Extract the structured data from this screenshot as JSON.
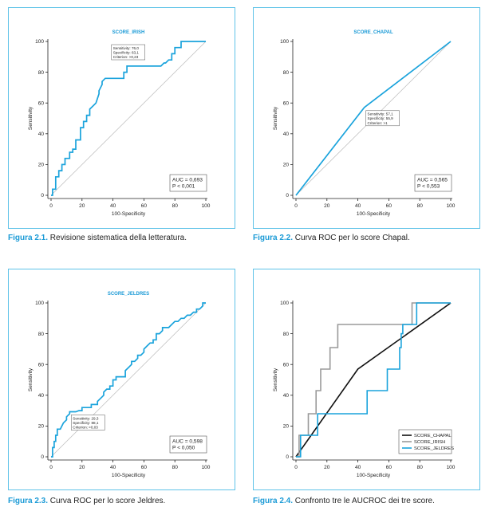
{
  "colors": {
    "accent": "#1a9ad6",
    "roc_line": "#1aa3dc",
    "diagonal": "#bbbbbb",
    "frame": "#5fc3e8"
  },
  "captions": [
    {
      "label": "Figura 2.1.",
      "text": " Revisione sistematica della letteratura."
    },
    {
      "label": "Figura 2.2.",
      "text": " Curva ROC per lo score Chapal."
    },
    {
      "label": "Figura 2.3.",
      "text": " Curva ROC per lo score Jeldres."
    },
    {
      "label": "Figura 2.4.",
      "text": " Confronto tre le AUCROC dei tre score."
    }
  ],
  "chart_data": [
    {
      "type": "line",
      "title": "SCORE_IRISH",
      "xlabel": "100-Specificity",
      "ylabel": "Sensitivity",
      "xlim": [
        0,
        100
      ],
      "ylim": [
        0,
        100
      ],
      "xticks": [
        0,
        20,
        40,
        60,
        80,
        100
      ],
      "yticks": [
        0,
        20,
        40,
        60,
        80,
        100
      ],
      "diagonal": true,
      "series": [
        {
          "color": "#1aa3dc",
          "x": [
            0,
            1,
            1,
            3,
            3,
            5,
            5,
            7,
            7,
            9,
            9,
            12,
            12,
            14,
            14,
            16,
            16,
            19,
            19,
            21,
            21,
            23,
            23,
            25,
            25,
            27,
            29,
            31,
            31,
            33,
            33,
            35,
            37,
            39,
            41,
            43,
            45,
            47,
            47,
            49,
            49,
            51,
            53,
            55,
            57,
            59,
            61,
            63,
            65,
            67,
            69,
            71,
            73,
            74,
            76,
            78,
            78,
            80,
            80,
            82,
            82,
            84,
            84,
            86,
            88,
            90,
            92,
            94,
            96,
            98,
            100
          ],
          "y": [
            0,
            0,
            4,
            4,
            12,
            12,
            16,
            16,
            20,
            20,
            24,
            24,
            28,
            28,
            30,
            30,
            36,
            36,
            44,
            44,
            48,
            48,
            52,
            52,
            56,
            58,
            60,
            66,
            68,
            72,
            74,
            76,
            76,
            76,
            76,
            76,
            76,
            76,
            80,
            80,
            84,
            84,
            84,
            84,
            84,
            84,
            84,
            84,
            84,
            84,
            84,
            84,
            86,
            86,
            88,
            88,
            92,
            92,
            96,
            96,
            96,
            96,
            100,
            100,
            100,
            100,
            100,
            100,
            100,
            100,
            100
          ]
        }
      ],
      "annotation": [
        "Sensitivity: 76,0",
        "Specificity: 63,1",
        "Criterion:    >0,23"
      ],
      "stats": [
        "AUC = 0,693",
        "P < 0,001"
      ]
    },
    {
      "type": "line",
      "title": "SCORE_CHAPAL",
      "xlabel": "100-Specificity",
      "ylabel": "Sensitivity",
      "xlim": [
        0,
        100
      ],
      "ylim": [
        0,
        100
      ],
      "xticks": [
        0,
        20,
        40,
        60,
        80,
        100
      ],
      "yticks": [
        0,
        20,
        40,
        60,
        80,
        100
      ],
      "diagonal": true,
      "series": [
        {
          "color": "#1aa3dc",
          "x": [
            0,
            44.1,
            100
          ],
          "y": [
            0,
            57.1,
            100
          ]
        }
      ],
      "annotation": [
        "Sensitivity: 57,1",
        "Specificity: 55,9",
        "Criterion:    >1"
      ],
      "stats": [
        "AUC = 0,565",
        "P < 0,553"
      ]
    },
    {
      "type": "line",
      "title": "SCORE_JELDRES",
      "xlabel": "100-Specificity",
      "ylabel": "Sensitivity",
      "xlim": [
        0,
        100
      ],
      "ylim": [
        0,
        100
      ],
      "xticks": [
        0,
        20,
        40,
        60,
        80,
        100
      ],
      "yticks": [
        0,
        20,
        40,
        60,
        80,
        100
      ],
      "diagonal": true,
      "series": [
        {
          "color": "#1aa3dc",
          "x": [
            0,
            1,
            1,
            2,
            2,
            3,
            3,
            4,
            4,
            6,
            8,
            8,
            10,
            10,
            12,
            12,
            16,
            18,
            20,
            20,
            24,
            26,
            26,
            28,
            30,
            30,
            32,
            34,
            34,
            36,
            38,
            38,
            40,
            40,
            42,
            42,
            46,
            48,
            48,
            50,
            52,
            52,
            54,
            56,
            56,
            58,
            60,
            60,
            62,
            64,
            66,
            66,
            68,
            68,
            70,
            72,
            72,
            74,
            76,
            78,
            80,
            82,
            84,
            86,
            88,
            90,
            92,
            94,
            94,
            96,
            98,
            98,
            100
          ],
          "y": [
            0,
            0,
            6,
            6,
            10,
            10,
            14,
            14,
            18,
            18,
            22,
            22,
            24,
            26,
            28,
            29.3,
            29.3,
            30,
            30,
            32,
            32,
            32,
            34,
            34,
            34,
            36,
            38,
            40,
            42,
            44,
            44,
            46,
            46,
            50,
            50,
            52,
            52,
            52,
            56,
            58,
            60,
            62,
            62,
            64,
            66,
            66,
            68,
            70,
            72,
            74,
            74,
            76,
            76,
            80,
            80,
            82,
            84,
            84,
            84,
            86,
            88,
            88,
            90,
            90,
            92,
            92,
            94,
            94,
            96,
            96,
            98,
            100,
            100
          ]
        }
      ],
      "annotation": [
        "Sensitivity: 29,3",
        "Specificity: 88,1",
        "Criterion:    >0,03"
      ],
      "stats": [
        "AUC = 0,598",
        "P < 0,050"
      ]
    },
    {
      "type": "line",
      "title": "",
      "xlabel": "100-Specificity",
      "ylabel": "Sensitivity",
      "xlim": [
        0,
        100
      ],
      "ylim": [
        0,
        100
      ],
      "xticks": [
        0,
        20,
        40,
        60,
        80,
        100
      ],
      "yticks": [
        0,
        20,
        40,
        60,
        80,
        100
      ],
      "diagonal": false,
      "legend_position": "bottom-right",
      "series": [
        {
          "name": "SCORE_CHAPAL",
          "color": "#111111",
          "x": [
            0,
            40,
            100
          ],
          "y": [
            0,
            57,
            100
          ]
        },
        {
          "name": "SCORE_IRISH",
          "color": "#9a9a9a",
          "x": [
            0,
            2,
            2,
            8,
            8,
            10,
            10,
            13,
            13,
            16,
            16,
            22,
            22,
            27,
            27,
            42,
            42,
            58,
            58,
            75,
            75,
            100
          ],
          "y": [
            0,
            0,
            14,
            14,
            28,
            28,
            28,
            28,
            43,
            43,
            57,
            57,
            71,
            71,
            86,
            86,
            86,
            86,
            86,
            86,
            100,
            100
          ]
        },
        {
          "name": "SCORE_JELDRES",
          "color": "#1aa3dc",
          "x": [
            0,
            3,
            3,
            8,
            8,
            14,
            14,
            18,
            18,
            32,
            32,
            46,
            46,
            59,
            59,
            67,
            67,
            68,
            68,
            69,
            69,
            78,
            78,
            100
          ],
          "y": [
            0,
            0,
            14,
            14,
            14,
            14,
            28,
            28,
            28,
            28,
            28,
            28,
            43,
            43,
            57,
            57,
            71,
            71,
            80,
            80,
            86,
            86,
            100,
            100
          ]
        }
      ]
    }
  ]
}
